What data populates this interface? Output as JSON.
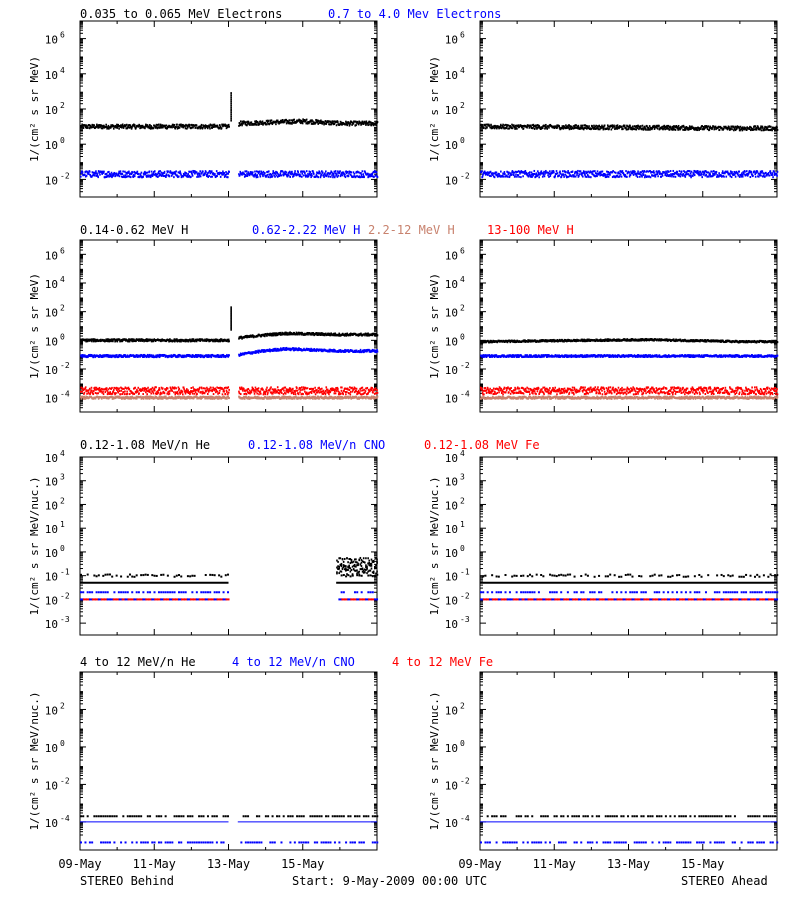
{
  "footer": {
    "left": "STEREO Behind",
    "center": "Start:  9-May-2009 00:00 UTC",
    "right": "STEREO Ahead"
  },
  "x_ticks": [
    "09-May",
    "11-May",
    "13-May",
    "15-May"
  ],
  "colors": {
    "black": "#000000",
    "blue": "#0000ff",
    "red": "#ff0000",
    "tan": "#c8826e"
  },
  "chart_data": [
    {
      "type": "scatter",
      "group": "electrons",
      "legend": [
        {
          "text": "0.035 to 0.065 MeV Electrons",
          "color": "#000000"
        },
        {
          "text": "0.7 to 4.0 Mev Electrons",
          "color": "#0000ff"
        }
      ],
      "ylabel": "1/(cm² s sr MeV)",
      "ylog": true,
      "ylim_exp": [
        -3,
        7
      ],
      "ytick_exps": [
        -2,
        0,
        2,
        4,
        6
      ],
      "panels": [
        {
          "name": "STEREO Behind",
          "gap_days": [
            4.0,
            4.25
          ],
          "series": [
            {
              "color": "#000000",
              "level": 10,
              "spread": 0.12,
              "trend": [
                [
                  0,
                  10
                ],
                [
                  4,
                  10
                ],
                [
                  4.3,
                  15
                ],
                [
                  6,
                  20
                ],
                [
                  7,
                  15
                ]
              ],
              "spike": [
                4.05,
                800
              ]
            },
            {
              "color": "#0000ff",
              "level": 0.02,
              "spread": 0.18,
              "trend": [
                [
                  0,
                  0.02
                ],
                [
                  7,
                  0.02
                ]
              ]
            }
          ]
        },
        {
          "name": "STEREO Ahead",
          "gap_days": null,
          "series": [
            {
              "color": "#000000",
              "level": 9,
              "spread": 0.12,
              "trend": [
                [
                  0,
                  10
                ],
                [
                  7,
                  8
                ]
              ]
            },
            {
              "color": "#0000ff",
              "level": 0.02,
              "spread": 0.18,
              "trend": [
                [
                  0,
                  0.02
                ],
                [
                  7,
                  0.02
                ]
              ]
            }
          ]
        }
      ]
    },
    {
      "type": "scatter",
      "group": "protons",
      "legend": [
        {
          "text": "0.14-0.62 MeV H",
          "color": "#000000"
        },
        {
          "text": "0.62-2.22 MeV H",
          "color": "#0000ff"
        },
        {
          "text": "2.2-12 MeV H",
          "color": "#c8826e"
        },
        {
          "text": "13-100 MeV H",
          "color": "#ff0000"
        }
      ],
      "ylabel": "1/(cm² s sr MeV)",
      "ylog": true,
      "ylim_exp": [
        -5,
        7
      ],
      "ytick_exps": [
        -4,
        -2,
        0,
        2,
        4,
        6
      ],
      "panels": [
        {
          "name": "STEREO Behind",
          "gap_days": [
            4.0,
            4.25
          ],
          "series": [
            {
              "color": "#000000",
              "level": 1,
              "spread": 0.08,
              "trend": [
                [
                  0,
                  1
                ],
                [
                  4,
                  1
                ],
                [
                  4.3,
                  1.5
                ],
                [
                  5.5,
                  3
                ],
                [
                  7,
                  2.5
                ]
              ],
              "spike": [
                4.05,
                200
              ]
            },
            {
              "color": "#0000ff",
              "level": 0.08,
              "spread": 0.08,
              "trend": [
                [
                  0,
                  0.08
                ],
                [
                  4,
                  0.08
                ],
                [
                  4.3,
                  0.1
                ],
                [
                  5.5,
                  0.25
                ],
                [
                  7,
                  0.18
                ]
              ]
            },
            {
              "color": "#c8826e",
              "level": 0.0001,
              "spread": 0.08,
              "trend": [
                [
                  0,
                  0.0001
                ],
                [
                  7,
                  0.0001
                ]
              ]
            },
            {
              "color": "#ff0000",
              "level": 0.0003,
              "spread": 0.25,
              "trend": [
                [
                  0,
                  0.0003
                ],
                [
                  7,
                  0.0003
                ]
              ]
            }
          ]
        },
        {
          "name": "STEREO Ahead",
          "gap_days": null,
          "series": [
            {
              "color": "#000000",
              "level": 1,
              "spread": 0.06,
              "trend": [
                [
                  0,
                  0.8
                ],
                [
                  4.5,
                  1.1
                ],
                [
                  7,
                  0.8
                ]
              ]
            },
            {
              "color": "#0000ff",
              "level": 0.08,
              "spread": 0.07,
              "trend": [
                [
                  0,
                  0.08
                ],
                [
                  7,
                  0.08
                ]
              ]
            },
            {
              "color": "#c8826e",
              "level": 0.0001,
              "spread": 0.08,
              "trend": [
                [
                  0,
                  0.0001
                ],
                [
                  7,
                  0.0001
                ]
              ]
            },
            {
              "color": "#ff0000",
              "level": 0.0003,
              "spread": 0.25,
              "trend": [
                [
                  0,
                  0.0003
                ],
                [
                  7,
                  0.0003
                ]
              ]
            }
          ]
        }
      ]
    },
    {
      "type": "scatter",
      "group": "heavy-low",
      "legend": [
        {
          "text": "0.12-1.08 MeV/n He",
          "color": "#000000"
        },
        {
          "text": "0.12-1.08 MeV/n CNO",
          "color": "#0000ff"
        },
        {
          "text": "0.12-1.08 MeV Fe",
          "color": "#ff0000"
        }
      ],
      "ylabel": "1/(cm² s sr MeV/nuc.)",
      "ylog": true,
      "ylim_exp": [
        -3.5,
        4
      ],
      "ytick_exps": [
        -3,
        -2,
        -1,
        0,
        1,
        2,
        3,
        4
      ],
      "ytick_style": "pow10",
      "panels": [
        {
          "name": "STEREO Behind",
          "gap_days": [
            4.0,
            6.9
          ],
          "series": [
            {
              "color": "#000000",
              "level": 0.1,
              "spread": 0.05,
              "trend": [
                [
                  0,
                  0.1
                ],
                [
                  7,
                  0.1
                ]
              ],
              "sparse": true,
              "late_burst": [
                6.9,
                8.0,
                0.25
              ]
            },
            {
              "color": "#000000",
              "level": 0.05,
              "spread": 0,
              "line": true
            },
            {
              "color": "#0000ff",
              "level": 0.02,
              "spread": 0,
              "sparse": true
            },
            {
              "color": "#ff0000",
              "level": 0.01,
              "spread": 0,
              "dashed_with": "#0000ff"
            }
          ]
        },
        {
          "name": "STEREO Ahead",
          "gap_days": null,
          "series": [
            {
              "color": "#000000",
              "level": 0.1,
              "spread": 0.05,
              "trend": [
                [
                  0,
                  0.1
                ],
                [
                  7,
                  0.1
                ]
              ],
              "sparse": true
            },
            {
              "color": "#000000",
              "level": 0.05,
              "spread": 0,
              "line": true
            },
            {
              "color": "#0000ff",
              "level": 0.02,
              "spread": 0,
              "sparse": true
            },
            {
              "color": "#ff0000",
              "level": 0.01,
              "spread": 0,
              "dashed_with": "#0000ff"
            }
          ]
        }
      ]
    },
    {
      "type": "scatter",
      "group": "heavy-high",
      "legend": [
        {
          "text": "4 to 12 MeV/n He",
          "color": "#000000"
        },
        {
          "text": "4 to 12 MeV/n CNO",
          "color": "#0000ff"
        },
        {
          "text": "4 to 12 MeV Fe",
          "color": "#ff0000"
        }
      ],
      "ylabel": "1/(cm² s sr MeV/nuc.)",
      "ylog": true,
      "ylim_exp": [
        -5.5,
        4
      ],
      "ytick_exps": [
        -4,
        -2,
        0,
        2
      ],
      "panels": [
        {
          "name": "STEREO Behind",
          "gap_days": [
            4.0,
            4.25
          ],
          "series": [
            {
              "color": "#000000",
              "level": 0.0002,
              "spread": 0,
              "sparse": true
            },
            {
              "color": "#0000ff",
              "level": 0.0001,
              "spread": 0,
              "line": true
            },
            {
              "color": "#0000ff",
              "level": 8e-06,
              "spread": 0,
              "sparse": true
            }
          ]
        },
        {
          "name": "STEREO Ahead",
          "gap_days": null,
          "series": [
            {
              "color": "#000000",
              "level": 0.0002,
              "spread": 0,
              "sparse": true
            },
            {
              "color": "#0000ff",
              "level": 0.0001,
              "spread": 0,
              "line": true
            },
            {
              "color": "#0000ff",
              "level": 8e-06,
              "spread": 0,
              "sparse": true
            }
          ]
        }
      ]
    }
  ]
}
